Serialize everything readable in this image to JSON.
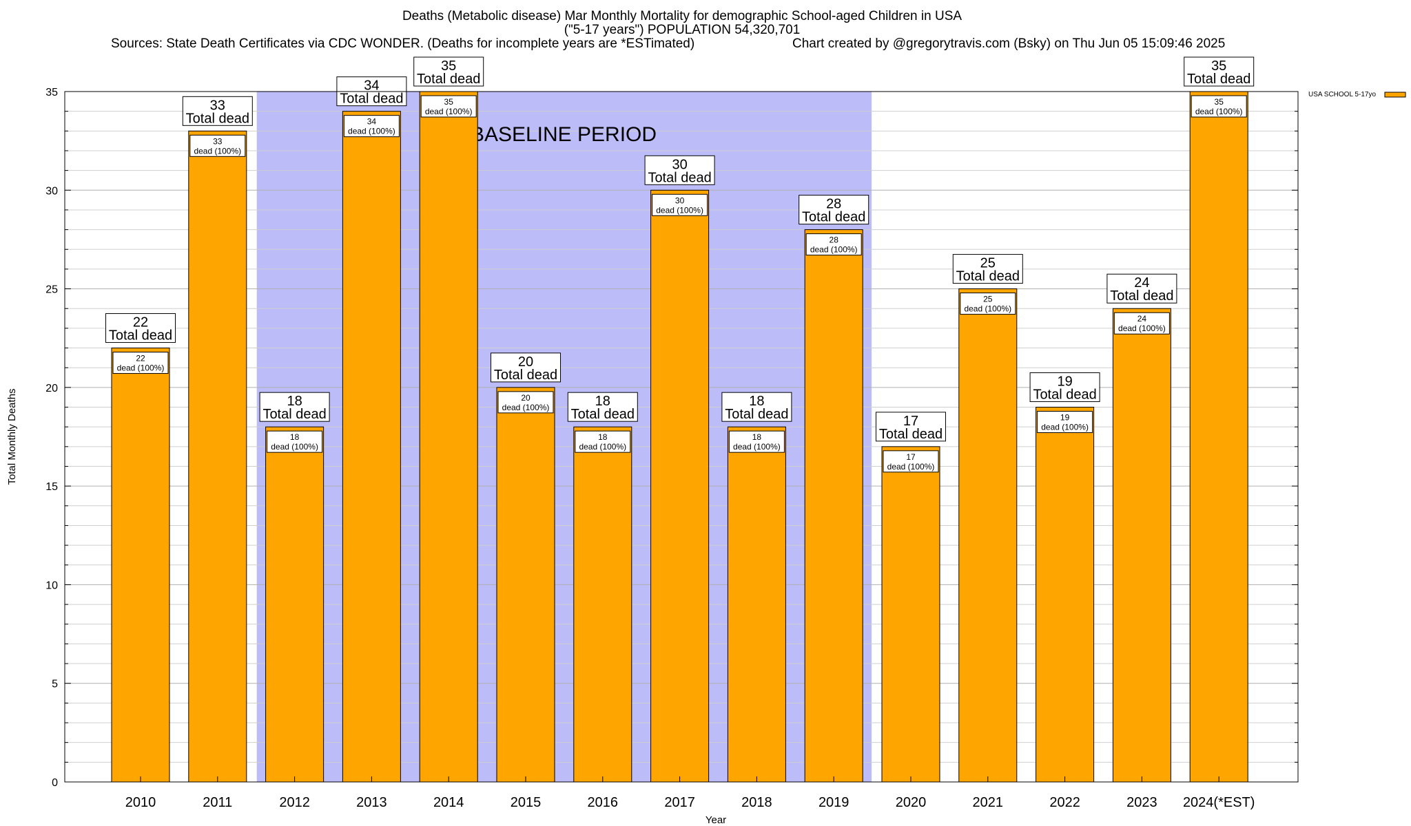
{
  "chart_data": {
    "type": "bar",
    "title": "Deaths (Metabolic disease) Mar Monthly Mortality for demographic School-aged Children in USA",
    "subtitle": "(\"5-17 years\") POPULATION 54,320,701",
    "sources": "Sources: State Death Certificates via CDC WONDER. (Deaths for incomplete years are *ESTimated)",
    "credit": "Chart created by @gregorytravis.com (Bsky) on Thu Jun 05 15:09:46 2025",
    "xlabel": "Year",
    "ylabel": "Total Monthly Deaths",
    "ylim": [
      0,
      35
    ],
    "yticks": [
      0,
      5,
      10,
      15,
      20,
      25,
      30,
      35
    ],
    "categories": [
      "2010",
      "2011",
      "2012",
      "2013",
      "2014",
      "2015",
      "2016",
      "2017",
      "2018",
      "2019",
      "2020",
      "2021",
      "2022",
      "2023",
      "2024(*EST)"
    ],
    "series": [
      {
        "name": "USA SCHOOL 5-17yo",
        "color": "#ffa500",
        "values": [
          22,
          33,
          18,
          34,
          35,
          20,
          18,
          30,
          18,
          28,
          17,
          25,
          19,
          24,
          35
        ]
      }
    ],
    "total_label_suffix": "Total dead",
    "inner_label_suffix": "dead (100%)",
    "baseline": {
      "label": "BASELINE PERIOD",
      "from_category": "2012",
      "to_category": "2019",
      "color": "#bcbcf9"
    },
    "grid": true,
    "legend_position": "top-right"
  }
}
